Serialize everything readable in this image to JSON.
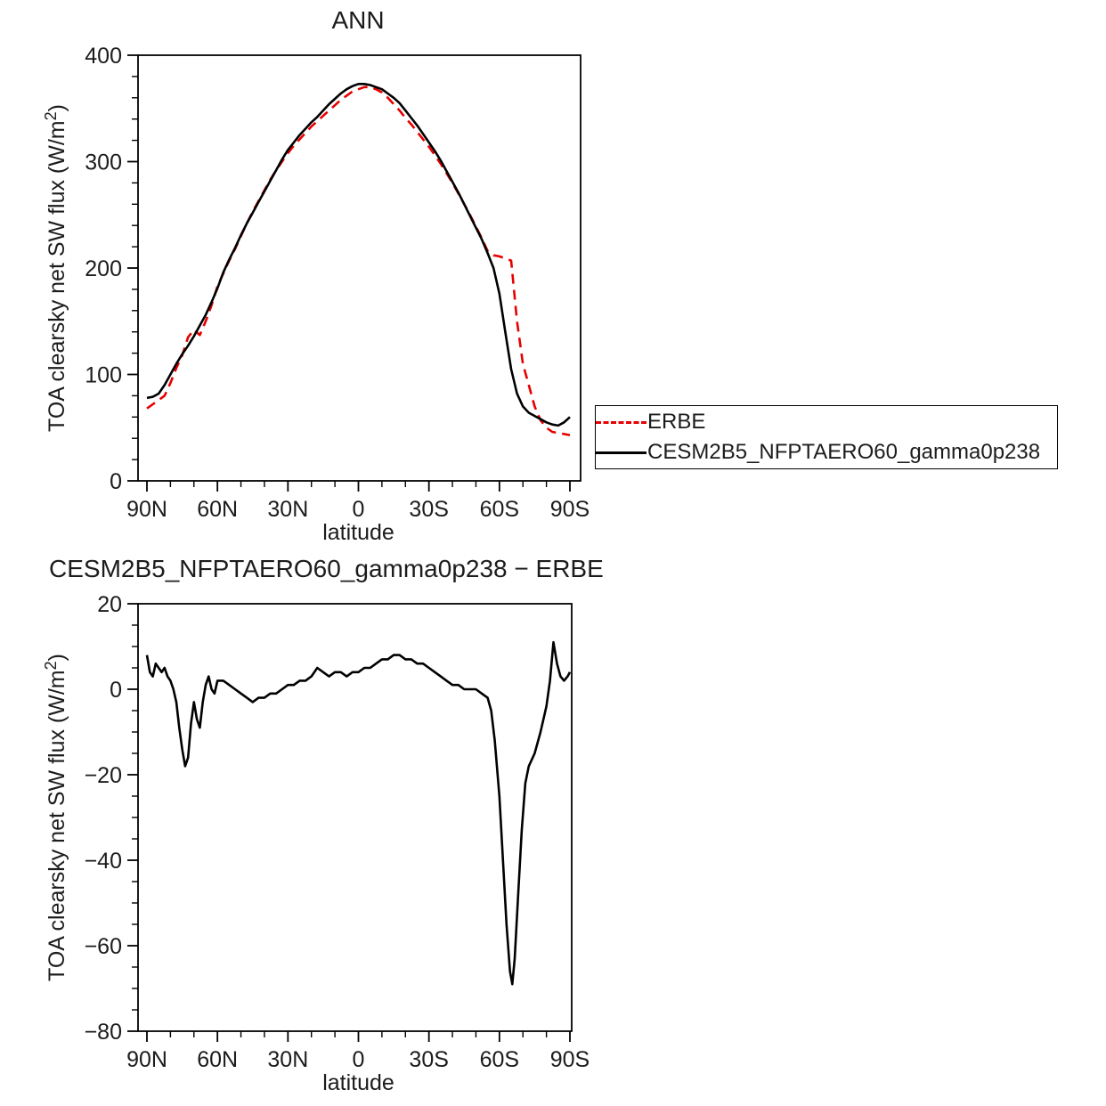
{
  "page": {
    "background": "#ffffff"
  },
  "legend": {
    "entries": [
      {
        "label": "ERBE",
        "color": "#e60000",
        "style": "dashed"
      },
      {
        "label": "CESM2B5_NFPTAERO60_gamma0p238",
        "color": "#000000",
        "style": "solid"
      }
    ]
  },
  "chart_data": [
    {
      "type": "line",
      "title": "ANN",
      "xlabel": "latitude",
      "ylabel": "TOA clearsky net SW flux (W/m²)",
      "xlim": [
        90,
        -90
      ],
      "ylim": [
        0,
        400
      ],
      "grid": false,
      "legend_position": "outside-right",
      "xticks": [
        {
          "value": 90,
          "label": "90N"
        },
        {
          "value": 60,
          "label": "60N"
        },
        {
          "value": 30,
          "label": "30N"
        },
        {
          "value": 0,
          "label": "0"
        },
        {
          "value": -30,
          "label": "30S"
        },
        {
          "value": -60,
          "label": "60S"
        },
        {
          "value": -90,
          "label": "90S"
        }
      ],
      "yticks": [
        {
          "value": 0,
          "label": "0"
        },
        {
          "value": 100,
          "label": "100"
        },
        {
          "value": 200,
          "label": "200"
        },
        {
          "value": 300,
          "label": "300"
        },
        {
          "value": 400,
          "label": "400"
        }
      ],
      "series": [
        {
          "name": "ERBE",
          "color": "#e60000",
          "dash": "11 7",
          "x": [
            90,
            87.5,
            85,
            82.5,
            80,
            77.5,
            75,
            72.5,
            70,
            67.5,
            65,
            62.5,
            60,
            57.5,
            55,
            52.5,
            50,
            47.5,
            45,
            42.5,
            40,
            37.5,
            35,
            32.5,
            30,
            27.5,
            25,
            22.5,
            20,
            17.5,
            15,
            12.5,
            10,
            7.5,
            5,
            2.5,
            0,
            -2.5,
            -5,
            -7.5,
            -10,
            -12.5,
            -15,
            -17.5,
            -20,
            -22.5,
            -25,
            -27.5,
            -30,
            -32.5,
            -35,
            -37.5,
            -40,
            -42.5,
            -45,
            -47.5,
            -50,
            -52.5,
            -55,
            -57.5,
            -60,
            -62.5,
            -65,
            -67.5,
            -70,
            -72.5,
            -75,
            -77.5,
            -80,
            -82.5,
            -85,
            -87.5,
            -90
          ],
          "y": [
            68,
            72,
            76,
            80,
            92,
            106,
            118,
            135,
            142,
            137,
            150,
            165,
            183,
            195,
            207,
            218,
            230,
            242,
            253,
            263,
            273,
            283,
            292,
            300,
            308,
            315,
            321,
            327,
            333,
            338,
            343,
            348,
            353,
            358,
            362,
            366,
            368,
            370,
            370,
            368,
            365,
            360,
            354,
            348,
            341,
            335,
            328,
            321,
            314,
            306,
            298,
            289,
            280,
            270,
            260,
            250,
            239,
            228,
            216,
            212,
            211,
            209,
            207,
            150,
            110,
            90,
            70,
            57,
            50,
            46,
            45,
            44,
            43
          ]
        },
        {
          "name": "CESM2B5_NFPTAERO60_gamma0p238",
          "color": "#000000",
          "dash": null,
          "x": [
            90,
            87.5,
            85,
            82.5,
            80,
            77.5,
            75,
            72.5,
            70,
            67.5,
            65,
            62.5,
            60,
            57.5,
            55,
            52.5,
            50,
            47.5,
            45,
            42.5,
            40,
            37.5,
            35,
            32.5,
            30,
            27.5,
            25,
            22.5,
            20,
            17.5,
            15,
            12.5,
            10,
            7.5,
            5,
            2.5,
            0,
            -2.5,
            -5,
            -7.5,
            -10,
            -12.5,
            -15,
            -17.5,
            -20,
            -22.5,
            -25,
            -27.5,
            -30,
            -32.5,
            -35,
            -37.5,
            -40,
            -42.5,
            -45,
            -47.5,
            -50,
            -52.5,
            -55,
            -57.5,
            -60,
            -62.5,
            -65,
            -67.5,
            -70,
            -72.5,
            -75,
            -77.5,
            -80,
            -82.5,
            -85,
            -87.5,
            -90
          ],
          "y": [
            78,
            79,
            82,
            90,
            100,
            110,
            119,
            127,
            136,
            146,
            156,
            168,
            181,
            196,
            208,
            219,
            231,
            242,
            252,
            262,
            272,
            282,
            292,
            302,
            311,
            318,
            325,
            331,
            337,
            342,
            348,
            354,
            359,
            364,
            368,
            371,
            373,
            373,
            372,
            370,
            368,
            364,
            360,
            355,
            348,
            341,
            334,
            326,
            318,
            310,
            301,
            291,
            281,
            271,
            260,
            249,
            238,
            227,
            214,
            200,
            176,
            140,
            105,
            82,
            70,
            64,
            61,
            58,
            55,
            53,
            52,
            55,
            60
          ]
        }
      ]
    },
    {
      "type": "line",
      "title": "CESM2B5_NFPTAERO60_gamma0p238 − ERBE",
      "xlabel": "latitude",
      "ylabel": "TOA clearsky net SW flux (W/m²)",
      "xlim": [
        90,
        -90
      ],
      "ylim": [
        -80,
        20
      ],
      "grid": false,
      "legend_position": "none",
      "xticks": [
        {
          "value": 90,
          "label": "90N"
        },
        {
          "value": 60,
          "label": "60N"
        },
        {
          "value": 30,
          "label": "30N"
        },
        {
          "value": 0,
          "label": "0"
        },
        {
          "value": -30,
          "label": "30S"
        },
        {
          "value": -60,
          "label": "60S"
        },
        {
          "value": -90,
          "label": "90S"
        }
      ],
      "yticks": [
        {
          "value": 20,
          "label": "20"
        },
        {
          "value": 0,
          "label": "0"
        },
        {
          "value": -20,
          "label": "−20"
        },
        {
          "value": -40,
          "label": "−40"
        },
        {
          "value": -60,
          "label": "−60"
        },
        {
          "value": -80,
          "label": "−80"
        }
      ],
      "series": [
        {
          "name": "CESM2B5_NFPTAERO60_gamma0p238 − ERBE",
          "color": "#000000",
          "dash": null,
          "x": [
            90,
            88.75,
            87.5,
            86.25,
            85,
            83.75,
            82.5,
            81.25,
            80,
            78.75,
            77.5,
            76.25,
            75,
            73.75,
            72.5,
            71.25,
            70,
            68.75,
            67.5,
            66.25,
            65,
            63.75,
            62.5,
            61.25,
            60,
            57.5,
            55,
            52.5,
            50,
            47.5,
            45,
            42.5,
            40,
            37.5,
            35,
            32.5,
            30,
            27.5,
            25,
            22.5,
            20,
            17.5,
            15,
            12.5,
            10,
            7.5,
            5,
            2.5,
            0,
            -2.5,
            -5,
            -7.5,
            -10,
            -12.5,
            -15,
            -17.5,
            -20,
            -22.5,
            -25,
            -27.5,
            -30,
            -32.5,
            -35,
            -37.5,
            -40,
            -42.5,
            -45,
            -47.5,
            -50,
            -52.5,
            -55,
            -56.5,
            -58,
            -60,
            -61.5,
            -63,
            -64.5,
            -65.5,
            -66.5,
            -68,
            -69.5,
            -71,
            -72.5,
            -75,
            -77.5,
            -80,
            -81.5,
            -83,
            -84.5,
            -86,
            -87.5,
            -89,
            -90
          ],
          "y": [
            8,
            4,
            3,
            6,
            5,
            4,
            5,
            3,
            2,
            0,
            -3,
            -9,
            -14,
            -18,
            -16,
            -8,
            -3,
            -7,
            -9,
            -3,
            1,
            3,
            0,
            -1,
            2,
            2,
            1,
            0,
            -1,
            -2,
            -3,
            -2,
            -2,
            -1,
            -1,
            0,
            1,
            1,
            2,
            2,
            3,
            5,
            4,
            3,
            4,
            4,
            3,
            4,
            4,
            5,
            5,
            6,
            7,
            7,
            8,
            8,
            7,
            7,
            6,
            6,
            5,
            4,
            3,
            2,
            1,
            1,
            0,
            0,
            0,
            -1,
            -2,
            -5,
            -12,
            -25,
            -40,
            -55,
            -66,
            -69,
            -63,
            -48,
            -33,
            -22,
            -18,
            -15,
            -10,
            -4,
            2,
            11,
            6,
            3,
            2,
            3,
            4
          ]
        }
      ]
    }
  ]
}
